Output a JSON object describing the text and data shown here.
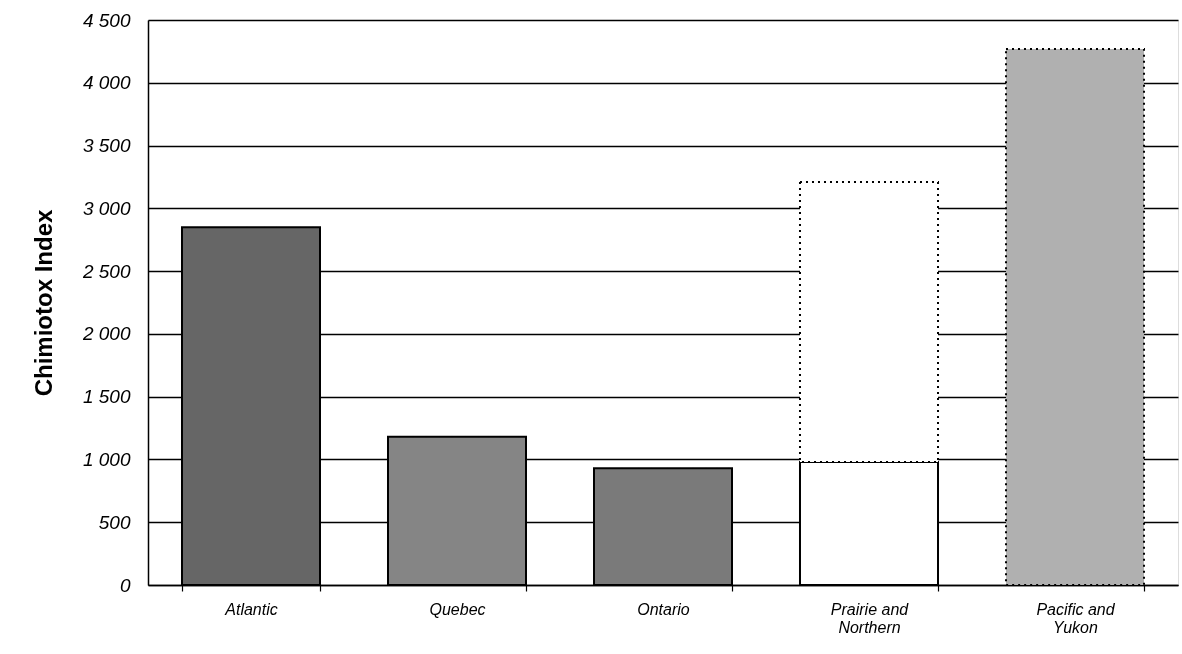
{
  "chart_data": {
    "type": "bar",
    "ylabel": "Chimiotox Index",
    "categories": [
      "Atlantic",
      "Quebec",
      "Ontario",
      "Prairie and Northern",
      "Pacific and Yukon"
    ],
    "stacked": true,
    "series": [
      {
        "colors": [
          "#666666",
          "#858585",
          "#7a7a7a",
          "#ffffff",
          "#b0b0b0"
        ],
        "values": [
          2850,
          1180,
          930,
          980,
          null
        ],
        "line_style": "solid"
      },
      {
        "colors": [
          "#666666",
          "#858585",
          "#7a7a7a",
          "#ffffff",
          "#b0b0b0"
        ],
        "values": [
          null,
          null,
          null,
          2230,
          4270
        ],
        "line_style": "dotted"
      }
    ],
    "ylim": [
      0,
      4500
    ],
    "yticks": [
      0,
      500,
      {
        "value": 1000,
        "label": "1 000"
      },
      {
        "value": 1500,
        "label": "1 500"
      },
      {
        "value": 2000,
        "label": "2 000"
      },
      {
        "value": 2500,
        "label": "2 500"
      },
      {
        "value": 3000,
        "label": "3 000"
      },
      {
        "value": 3500,
        "label": "3 500"
      },
      {
        "value": 4000,
        "label": "4 000"
      },
      {
        "value": 4500,
        "label": "4 500"
      }
    ],
    "grid": "y"
  }
}
